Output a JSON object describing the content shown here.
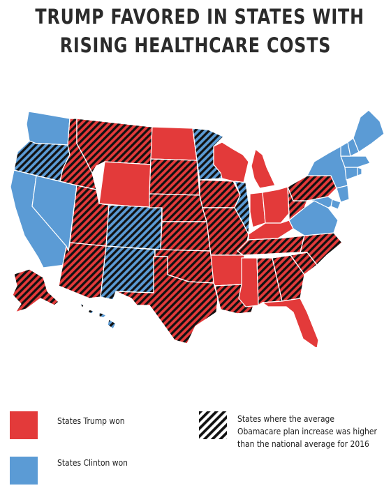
{
  "title": {
    "line1": "TRUMP FAVORED IN STATES WITH",
    "line2": "RISING HEALTHCARE COSTS"
  },
  "colors": {
    "trump": "#e33a3a",
    "clinton": "#5b9bd5",
    "hatch": "#111111",
    "border": "#ffffff"
  },
  "legend": {
    "trump_label": "States Trump won",
    "clinton_label": "States Clinton won",
    "hatch_line1": "States where the average",
    "hatch_line2": "Obamacare plan increase was higher",
    "hatch_line3": "than the national average for 2016"
  },
  "states": [
    {
      "name": "WA",
      "winner": "clinton",
      "higher_increase": false
    },
    {
      "name": "OR",
      "winner": "clinton",
      "higher_increase": true
    },
    {
      "name": "CA",
      "winner": "clinton",
      "higher_increase": false
    },
    {
      "name": "NV",
      "winner": "clinton",
      "higher_increase": false
    },
    {
      "name": "ID",
      "winner": "trump",
      "higher_increase": true
    },
    {
      "name": "MT",
      "winner": "trump",
      "higher_increase": true
    },
    {
      "name": "WY",
      "winner": "trump",
      "higher_increase": false
    },
    {
      "name": "UT",
      "winner": "trump",
      "higher_increase": true
    },
    {
      "name": "AZ",
      "winner": "trump",
      "higher_increase": true
    },
    {
      "name": "CO",
      "winner": "clinton",
      "higher_increase": true
    },
    {
      "name": "NM",
      "winner": "clinton",
      "higher_increase": true
    },
    {
      "name": "ND",
      "winner": "trump",
      "higher_increase": false
    },
    {
      "name": "SD",
      "winner": "trump",
      "higher_increase": true
    },
    {
      "name": "NE",
      "winner": "trump",
      "higher_increase": true
    },
    {
      "name": "KS",
      "winner": "trump",
      "higher_increase": true
    },
    {
      "name": "OK",
      "winner": "trump",
      "higher_increase": true
    },
    {
      "name": "TX",
      "winner": "trump",
      "higher_increase": true
    },
    {
      "name": "MN",
      "winner": "clinton",
      "higher_increase": true
    },
    {
      "name": "IA",
      "winner": "trump",
      "higher_increase": true
    },
    {
      "name": "MO",
      "winner": "trump",
      "higher_increase": true
    },
    {
      "name": "AR",
      "winner": "trump",
      "higher_increase": false
    },
    {
      "name": "LA",
      "winner": "trump",
      "higher_increase": true
    },
    {
      "name": "WI",
      "winner": "trump",
      "higher_increase": false
    },
    {
      "name": "IL",
      "winner": "clinton",
      "higher_increase": true
    },
    {
      "name": "MI",
      "winner": "trump",
      "higher_increase": false
    },
    {
      "name": "IN",
      "winner": "trump",
      "higher_increase": false
    },
    {
      "name": "OH",
      "winner": "trump",
      "higher_increase": false
    },
    {
      "name": "KY",
      "winner": "trump",
      "higher_increase": false
    },
    {
      "name": "TN",
      "winner": "trump",
      "higher_increase": true
    },
    {
      "name": "MS",
      "winner": "trump",
      "higher_increase": false
    },
    {
      "name": "AL",
      "winner": "trump",
      "higher_increase": true
    },
    {
      "name": "GA",
      "winner": "trump",
      "higher_increase": true
    },
    {
      "name": "FL",
      "winner": "trump",
      "higher_increase": false
    },
    {
      "name": "SC",
      "winner": "trump",
      "higher_increase": true
    },
    {
      "name": "NC",
      "winner": "trump",
      "higher_increase": true
    },
    {
      "name": "VA",
      "winner": "clinton",
      "higher_increase": false
    },
    {
      "name": "WV",
      "winner": "trump",
      "higher_increase": true
    },
    {
      "name": "PA",
      "winner": "trump",
      "higher_increase": true
    },
    {
      "name": "NY",
      "winner": "clinton",
      "higher_increase": false
    },
    {
      "name": "NJ",
      "winner": "clinton",
      "higher_increase": false
    },
    {
      "name": "DE",
      "winner": "clinton",
      "higher_increase": false
    },
    {
      "name": "MD",
      "winner": "clinton",
      "higher_increase": false
    },
    {
      "name": "CT",
      "winner": "clinton",
      "higher_increase": false
    },
    {
      "name": "RI",
      "winner": "clinton",
      "higher_increase": false
    },
    {
      "name": "MA",
      "winner": "clinton",
      "higher_increase": false
    },
    {
      "name": "VT",
      "winner": "clinton",
      "higher_increase": false
    },
    {
      "name": "NH",
      "winner": "clinton",
      "higher_increase": false
    },
    {
      "name": "ME",
      "winner": "clinton",
      "higher_increase": false
    },
    {
      "name": "AK",
      "winner": "trump",
      "higher_increase": true
    },
    {
      "name": "HI",
      "winner": "clinton",
      "higher_increase": true
    }
  ]
}
